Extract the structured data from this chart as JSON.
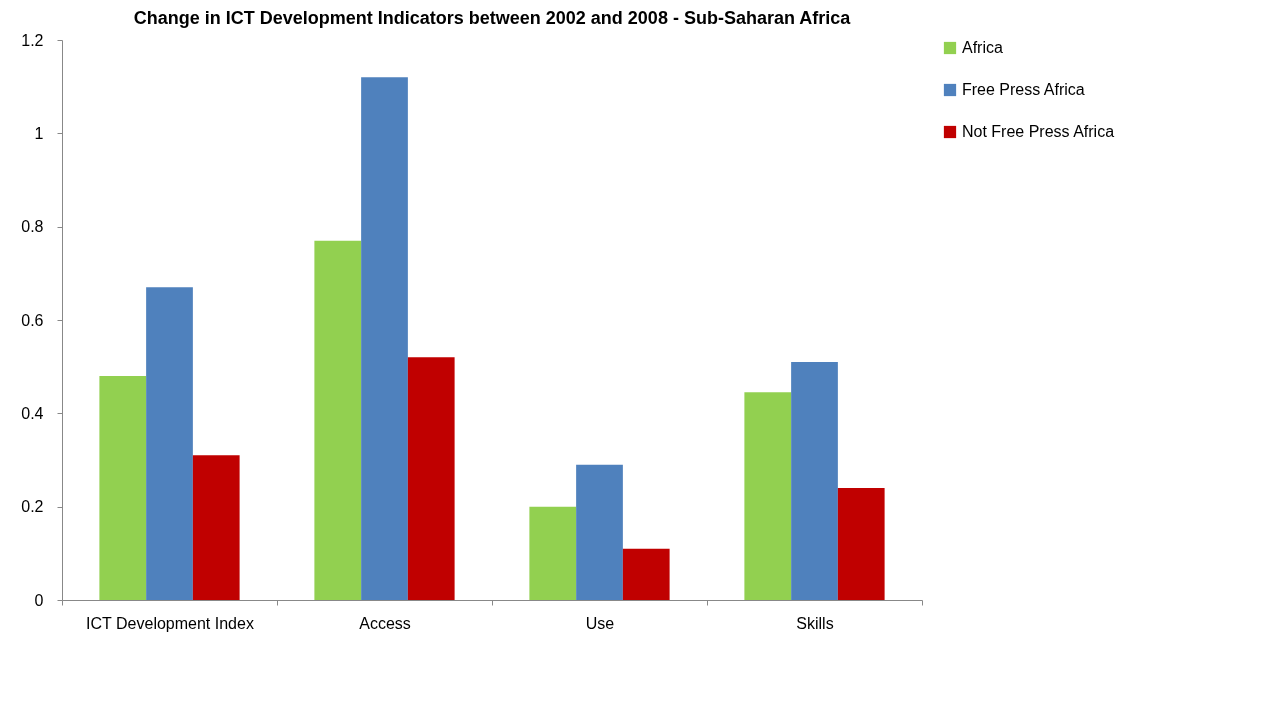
{
  "chart_data": {
    "type": "bar",
    "title": "Change in ICT Development Indicators between 2002 and 2008 - Sub-Saharan Africa",
    "categories": [
      "ICT Development Index",
      "Access",
      "Use",
      "Skills"
    ],
    "series": [
      {
        "name": "Africa",
        "color": "#92d050",
        "values": [
          0.48,
          0.77,
          0.2,
          0.445
        ]
      },
      {
        "name": "Free Press Africa",
        "color": "#4f81bd",
        "values": [
          0.67,
          1.12,
          0.29,
          0.51
        ]
      },
      {
        "name": "Not Free Press Africa",
        "color": "#c00000",
        "values": [
          0.31,
          0.52,
          0.11,
          0.24
        ]
      }
    ],
    "ylim": [
      0,
      1.2
    ],
    "yticks": [
      0,
      0.2,
      0.4,
      0.6,
      0.8,
      1,
      1.2
    ],
    "grid": false,
    "legend": "right"
  }
}
